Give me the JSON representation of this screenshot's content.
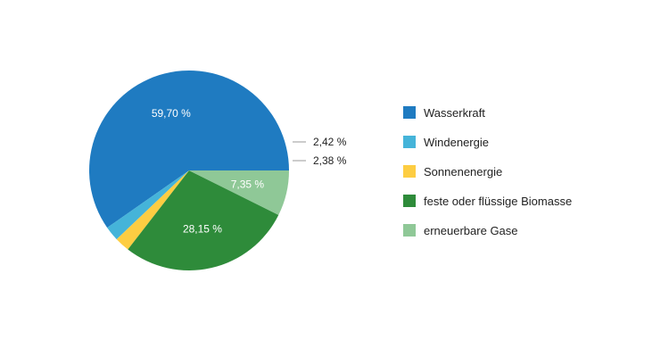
{
  "chart_data": {
    "type": "pie",
    "slices": [
      {
        "name": "Wasserkraft",
        "value": 59.7,
        "label": "59,70 %",
        "color": "#1f7bc1",
        "label_placement": "inside"
      },
      {
        "name": "Windenergie",
        "value": 2.38,
        "label": "2,38 %",
        "color": "#45b4d9",
        "label_placement": "outside"
      },
      {
        "name": "Sonnenenergie",
        "value": 2.42,
        "label": "2,42 %",
        "color": "#fdcd42",
        "label_placement": "outside"
      },
      {
        "name": "feste oder flüssige Biomasse",
        "value": 28.15,
        "label": "28,15 %",
        "color": "#2e8b3a",
        "label_placement": "inside"
      },
      {
        "name": "erneuerbare Gase",
        "value": 7.35,
        "label": "7,35 %",
        "color": "#8fc897",
        "label_placement": "inside"
      }
    ],
    "legend_order": [
      "Wasserkraft",
      "Windenergie",
      "Sonnenenergie",
      "feste oder flüssige Biomasse",
      "erneuerbare Gase"
    ],
    "legend_position": "right"
  }
}
